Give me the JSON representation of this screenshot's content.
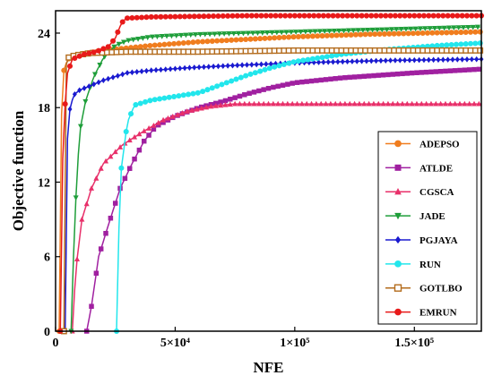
{
  "chart_data": {
    "type": "line",
    "xlabel": "NFE",
    "ylabel": "Objective function",
    "xlim": [
      0,
      178000
    ],
    "ylim": [
      0,
      25.8
    ],
    "x_ticks": [
      {
        "value": 0,
        "label": "0"
      },
      {
        "value": 50000,
        "label": "5×10⁴"
      },
      {
        "value": 100000,
        "label": "1×10⁵"
      },
      {
        "value": 150000,
        "label": "1.5×10⁵"
      }
    ],
    "y_ticks": [
      {
        "value": 0,
        "label": "0"
      },
      {
        "value": 6,
        "label": "6"
      },
      {
        "value": 12,
        "label": "12"
      },
      {
        "value": 18,
        "label": "18"
      },
      {
        "value": 24,
        "label": "24"
      }
    ],
    "legend_position": "bottom-right",
    "grid": false,
    "series": [
      {
        "name": "ADEPSO",
        "color": "#f07d1e",
        "marker": "circle",
        "points": [
          [
            1500,
            0
          ],
          [
            2500,
            17.5
          ],
          [
            3500,
            21
          ],
          [
            5000,
            21.9
          ],
          [
            10000,
            22.3
          ],
          [
            20000,
            22.6
          ],
          [
            40000,
            23.0
          ],
          [
            60000,
            23.3
          ],
          [
            80000,
            23.5
          ],
          [
            100000,
            23.7
          ],
          [
            130000,
            23.9
          ],
          [
            178000,
            24.1
          ]
        ]
      },
      {
        "name": "ATLDE",
        "color": "#a020a0",
        "marker": "square",
        "points": [
          [
            13000,
            0
          ],
          [
            15000,
            2
          ],
          [
            18000,
            6
          ],
          [
            22000,
            8.5
          ],
          [
            27000,
            11.5
          ],
          [
            32000,
            13.5
          ],
          [
            37000,
            15.3
          ],
          [
            42000,
            16.5
          ],
          [
            50000,
            17.3
          ],
          [
            60000,
            18
          ],
          [
            70000,
            18.5
          ],
          [
            80000,
            19.1
          ],
          [
            90000,
            19.6
          ],
          [
            100000,
            20.0
          ],
          [
            120000,
            20.4
          ],
          [
            150000,
            20.8
          ],
          [
            178000,
            21.1
          ]
        ]
      },
      {
        "name": "CGSCA",
        "color": "#e8306a",
        "marker": "triangle-up",
        "points": [
          [
            7000,
            0
          ],
          [
            8500,
            5
          ],
          [
            11000,
            9
          ],
          [
            15000,
            11.5
          ],
          [
            20000,
            13.5
          ],
          [
            28000,
            15
          ],
          [
            36000,
            16
          ],
          [
            45000,
            17
          ],
          [
            55000,
            17.7
          ],
          [
            65000,
            18.1
          ],
          [
            75000,
            18.3
          ],
          [
            100000,
            18.3
          ],
          [
            178000,
            18.3
          ]
        ]
      },
      {
        "name": "JADE",
        "color": "#1f9e3a",
        "marker": "triangle-down",
        "points": [
          [
            6500,
            0
          ],
          [
            8000,
            9
          ],
          [
            10000,
            16
          ],
          [
            12500,
            18.5
          ],
          [
            16000,
            20.5
          ],
          [
            20000,
            22.0
          ],
          [
            25000,
            23.0
          ],
          [
            30000,
            23.4
          ],
          [
            40000,
            23.7
          ],
          [
            60000,
            23.9
          ],
          [
            100000,
            24.1
          ],
          [
            140000,
            24.3
          ],
          [
            178000,
            24.5
          ]
        ]
      },
      {
        "name": "PGJAYA",
        "color": "#1a1ad0",
        "marker": "diamond",
        "points": [
          [
            4000,
            0
          ],
          [
            4500,
            13.5
          ],
          [
            5500,
            17.5
          ],
          [
            7500,
            19.0
          ],
          [
            10000,
            19.4
          ],
          [
            15000,
            19.8
          ],
          [
            20000,
            20.2
          ],
          [
            25000,
            20.5
          ],
          [
            30000,
            20.8
          ],
          [
            40000,
            21.0
          ],
          [
            55000,
            21.2
          ],
          [
            75000,
            21.4
          ],
          [
            100000,
            21.6
          ],
          [
            140000,
            21.8
          ],
          [
            178000,
            21.9
          ]
        ]
      },
      {
        "name": "RUN",
        "color": "#22e6ec",
        "marker": "circle",
        "points": [
          [
            25500,
            0
          ],
          [
            27000,
            12.4
          ],
          [
            30000,
            16.8
          ],
          [
            33000,
            18.2
          ],
          [
            40000,
            18.6
          ],
          [
            50000,
            18.9
          ],
          [
            60000,
            19.2
          ],
          [
            70000,
            19.9
          ],
          [
            80000,
            20.6
          ],
          [
            90000,
            21.2
          ],
          [
            100000,
            21.7
          ],
          [
            120000,
            22.3
          ],
          [
            140000,
            22.7
          ],
          [
            160000,
            23.0
          ],
          [
            178000,
            23.2
          ]
        ]
      },
      {
        "name": "GOTLBO",
        "color": "#b36b1c",
        "marker": "square-open",
        "points": [
          [
            3500,
            0
          ],
          [
            4000,
            21
          ],
          [
            5000,
            22
          ],
          [
            8000,
            22.2
          ],
          [
            15000,
            22.4
          ],
          [
            30000,
            22.5
          ],
          [
            60000,
            22.5
          ],
          [
            100000,
            22.6
          ],
          [
            140000,
            22.6
          ],
          [
            178000,
            22.6
          ]
        ]
      },
      {
        "name": "EMRUN",
        "color": "#e81a1a",
        "marker": "circle",
        "points": [
          [
            2000,
            0
          ],
          [
            2800,
            13
          ],
          [
            4500,
            20.5
          ],
          [
            7000,
            21.9
          ],
          [
            12000,
            22.3
          ],
          [
            17000,
            22.5
          ],
          [
            22000,
            22.9
          ],
          [
            25000,
            23.6
          ],
          [
            27500,
            24.8
          ],
          [
            29500,
            25.2
          ],
          [
            40000,
            25.3
          ],
          [
            80000,
            25.4
          ],
          [
            120000,
            25.4
          ],
          [
            178000,
            25.4
          ]
        ]
      }
    ]
  }
}
